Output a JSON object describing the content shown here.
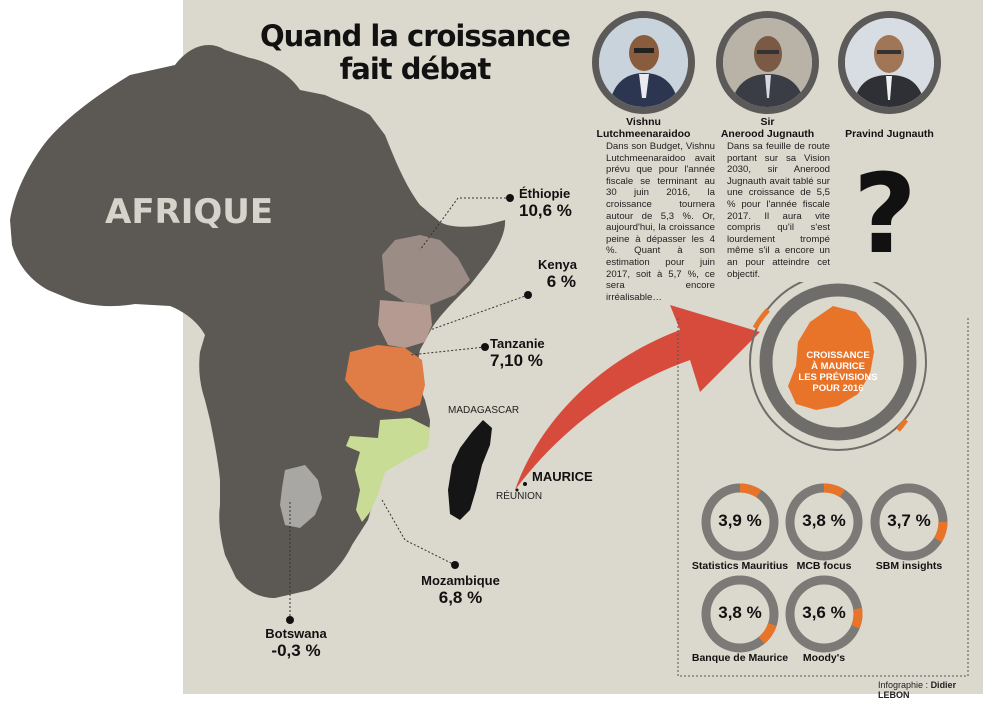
{
  "title_line1": "Quand la croissance",
  "title_line2": "fait débat",
  "continent_label": "AFRIQUE",
  "countries": [
    {
      "name": "Éthiopie",
      "value": "10,6 %",
      "color": "#9b8d86"
    },
    {
      "name": "Kenya",
      "value": "6 %",
      "color": "#b49a90"
    },
    {
      "name": "Tanzanie",
      "value": "7,10 %",
      "color": "#e07c45"
    },
    {
      "name": "Mozambique",
      "value": "6,8 %",
      "color": "#c8dc96"
    },
    {
      "name": "Botswana",
      "value": "-0,3 %",
      "color": "#a9a7a3"
    }
  ],
  "map_labels": {
    "madagascar": "MADAGASCAR",
    "maurice": "MAURICE",
    "reunion": "RÉUNION"
  },
  "people": [
    {
      "name_line1": "Vishnu",
      "name_line2": "Lutchmeenaraidoo",
      "text": "Dans son Budget, Vishnu Lutchmeenaraidoo avait prévu que pour l'année fiscale se terminant au 30 juin 2016, la croissance tournera autour de 5,3 %. Or, aujourd'hui, la croissance peine à dépasser les 4 %. Quant à son estimation pour juin 2017, soit à 5,7 %, ce sera encore irréalisable…"
    },
    {
      "name_line1": "Sir",
      "name_line2": "Anerood Jugnauth",
      "text": "Dans sa feuille de route portant sur sa Vision 2030, sir Anerood Jugnauth avait tablé sur une croissance de 5,5 % pour l'année fiscale 2017. Il aura vite compris qu'il s'est lourdement trompé même s'il a encore un an pour atteindre cet objectif."
    },
    {
      "name_line1": "",
      "name_line2": "Pravind Jugnauth",
      "text": ""
    }
  ],
  "question_mark": "?",
  "center_label": [
    "CROISSANCE",
    "À MAURICE",
    "LES PRÉVISIONS",
    "POUR 2016"
  ],
  "chart_data": {
    "type": "donut",
    "title": "CROISSANCE À MAURICE LES PRÉVISIONS POUR 2016",
    "categories": [
      "Statistics Mauritius",
      "MCB focus",
      "SBM insights",
      "Banque de Maurice",
      "Moody's"
    ],
    "values": [
      3.9,
      3.8,
      3.7,
      3.8,
      3.6
    ],
    "value_labels": [
      "3,9 %",
      "3,8 %",
      "3,7 %",
      "3,8 %",
      "3,6 %"
    ],
    "unit": "%",
    "accent_color": "#e8742a",
    "ring_color": "#7b7a77"
  },
  "credit_prefix": "Infographie :",
  "credit_name": "Didier LEBON"
}
